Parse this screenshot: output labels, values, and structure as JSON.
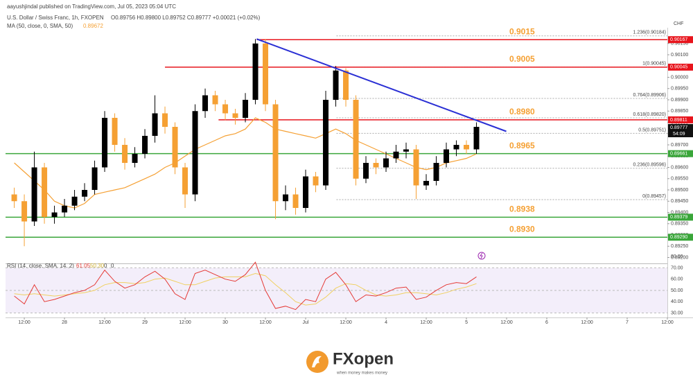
{
  "header": {
    "publisher": "aayushjindal published on TradingView.com, Jul 05, 2023 05:04 UTC",
    "symbol": "U.S. Dollar / Swiss Franc, 1h, FXOPEN",
    "ohlc": "O0.89756 H0.89800 L0.89752 C0.89777 +0.00021 (+0.02%)",
    "ma_legend": "MA (50, close, 0, SMA, 50)",
    "ma_value": "0.89672",
    "rsi_legend": "RSI (14, close, SMA, 14, 2)",
    "rsi_values": [
      "61.05",
      "50.30",
      "0",
      "0"
    ]
  },
  "footer": {
    "brand": "FXopen",
    "tagline": "when money makes money"
  },
  "chart_data": {
    "type": "candlestick",
    "currency": "CHF",
    "up_color": "#000000",
    "down_color": "#f5a033",
    "ma_color": "#f5a033",
    "xlim": [
      -5.6,
      192
    ],
    "xticks": [
      {
        "value": 0,
        "label": "12:00"
      },
      {
        "value": 12,
        "label": "28"
      },
      {
        "value": 24,
        "label": "12:00"
      },
      {
        "value": 36,
        "label": "29"
      },
      {
        "value": 48,
        "label": "12:00"
      },
      {
        "value": 60,
        "label": "30"
      },
      {
        "value": 72,
        "label": "12:00"
      },
      {
        "value": 84,
        "label": "Jul"
      },
      {
        "value": 96,
        "label": "12:00"
      },
      {
        "value": 108,
        "label": "4"
      },
      {
        "value": 120,
        "label": "12:00"
      },
      {
        "value": 132,
        "label": "5"
      },
      {
        "value": 144,
        "label": "12:00"
      },
      {
        "value": 156,
        "label": "6"
      },
      {
        "value": 168,
        "label": "12:00"
      },
      {
        "value": 180,
        "label": "7"
      },
      {
        "value": 192,
        "label": "12:00"
      }
    ],
    "ylim": [
      0.8918,
      0.9022
    ],
    "yticks": [
      {
        "value": 0.892,
        "label": "0.89200"
      },
      {
        "value": 0.8925,
        "label": "0.89250"
      },
      {
        "value": 0.893,
        "label": "0.89300"
      },
      {
        "value": 0.8935,
        "label": "0.89350"
      },
      {
        "value": 0.894,
        "label": "0.89400"
      },
      {
        "value": 0.8945,
        "label": "0.89450"
      },
      {
        "value": 0.895,
        "label": "0.89500"
      },
      {
        "value": 0.8955,
        "label": "0.89550"
      },
      {
        "value": 0.896,
        "label": "0.89600"
      },
      {
        "value": 0.8965,
        "label": "0.89650"
      },
      {
        "value": 0.897,
        "label": "0.89700"
      },
      {
        "value": 0.8975,
        "label": "0.89750"
      },
      {
        "value": 0.898,
        "label": "0.89800"
      },
      {
        "value": 0.8985,
        "label": "0.89850"
      },
      {
        "value": 0.899,
        "label": "0.89900"
      },
      {
        "value": 0.8995,
        "label": "0.89950"
      },
      {
        "value": 0.9,
        "label": "0.90000"
      },
      {
        "value": 0.9005,
        "label": "0.90050"
      },
      {
        "value": 0.901,
        "label": "0.90100"
      },
      {
        "value": 0.9015,
        "label": "0.90150"
      }
    ],
    "x": [
      -3,
      0,
      3,
      6,
      9,
      12,
      15,
      18,
      21,
      24,
      27,
      30,
      33,
      36,
      39,
      42,
      45,
      48,
      51,
      54,
      57,
      60,
      63,
      66,
      69,
      72,
      75,
      78,
      81,
      84,
      87,
      90,
      93,
      96,
      99,
      102,
      105,
      108,
      111,
      114,
      117,
      120,
      123,
      126,
      129,
      132,
      135
    ],
    "open": [
      0.8948,
      0.8945,
      0.8936,
      0.896,
      0.8938,
      0.894,
      0.8943,
      0.8947,
      0.895,
      0.896,
      0.8982,
      0.897,
      0.8962,
      0.8966,
      0.8974,
      0.8984,
      0.8978,
      0.896,
      0.8948,
      0.8985,
      0.8992,
      0.8988,
      0.8984,
      0.8982,
      0.899,
      0.9015,
      0.8988,
      0.8945,
      0.8948,
      0.8942,
      0.8956,
      0.8952,
      0.899,
      0.9003,
      0.899,
      0.8955,
      0.8962,
      0.896,
      0.8964,
      0.8967,
      0.8968,
      0.8952,
      0.8954,
      0.8962,
      0.8968,
      0.897,
      0.8968
    ],
    "high": [
      0.8951,
      0.8948,
      0.8967,
      0.8962,
      0.8943,
      0.8946,
      0.895,
      0.8953,
      0.8963,
      0.8985,
      0.8984,
      0.8973,
      0.8969,
      0.8977,
      0.8992,
      0.8987,
      0.898,
      0.8962,
      0.8988,
      0.8995,
      0.8994,
      0.899,
      0.8986,
      0.8993,
      0.9017,
      0.9017,
      0.899,
      0.8952,
      0.8951,
      0.8959,
      0.8958,
      0.8994,
      0.9005,
      0.9004,
      0.8992,
      0.8965,
      0.8964,
      0.8967,
      0.897,
      0.8971,
      0.897,
      0.8957,
      0.8965,
      0.8971,
      0.8972,
      0.8972,
      0.898
    ],
    "low": [
      0.8942,
      0.8925,
      0.8934,
      0.8935,
      0.8935,
      0.8938,
      0.8941,
      0.8945,
      0.8948,
      0.8958,
      0.8967,
      0.8959,
      0.896,
      0.8964,
      0.8971,
      0.8975,
      0.8957,
      0.8942,
      0.8945,
      0.8982,
      0.8985,
      0.8981,
      0.8979,
      0.898,
      0.8988,
      0.8985,
      0.8937,
      0.8941,
      0.8939,
      0.894,
      0.8949,
      0.895,
      0.8987,
      0.8987,
      0.8952,
      0.8953,
      0.8957,
      0.8958,
      0.8962,
      0.8964,
      0.8946,
      0.895,
      0.8952,
      0.896,
      0.8965,
      0.8966,
      0.8966
    ],
    "close": [
      0.8945,
      0.8936,
      0.896,
      0.8938,
      0.894,
      0.8943,
      0.8947,
      0.895,
      0.896,
      0.8982,
      0.897,
      0.8962,
      0.8966,
      0.8974,
      0.8984,
      0.8978,
      0.896,
      0.8948,
      0.8985,
      0.8992,
      0.8988,
      0.8984,
      0.8982,
      0.899,
      0.9015,
      0.8988,
      0.8945,
      0.8948,
      0.8942,
      0.8956,
      0.8952,
      0.899,
      0.9003,
      0.899,
      0.8955,
      0.8962,
      0.896,
      0.8964,
      0.8967,
      0.8968,
      0.8952,
      0.8954,
      0.8962,
      0.8968,
      0.897,
      0.8968,
      0.8978
    ],
    "ma": [
      0.8962,
      0.8958,
      0.8954,
      0.895,
      0.8945,
      0.8943,
      0.8942,
      0.8944,
      0.8948,
      0.8949,
      0.895,
      0.8951,
      0.8953,
      0.8955,
      0.8957,
      0.896,
      0.8962,
      0.8965,
      0.8968,
      0.897,
      0.8972,
      0.8974,
      0.8975,
      0.8977,
      0.8982,
      0.898,
      0.8977,
      0.8976,
      0.8975,
      0.8974,
      0.8973,
      0.8975,
      0.8977,
      0.8975,
      0.8972,
      0.897,
      0.8968,
      0.8966,
      0.8964,
      0.8962,
      0.896,
      0.8959,
      0.896,
      0.8962,
      0.8963,
      0.8964,
      0.8966
    ],
    "last_price": 0.89777,
    "countdown": "54:09",
    "levels": [
      {
        "label": "0.9015",
        "value": 0.90167,
        "axis_label": "0.90167",
        "color": "#e8141c",
        "x_start": 69.4
      },
      {
        "label": "0.9005",
        "value": 0.90045,
        "axis_label": "0.90045",
        "color": "#e8141c",
        "x_start": 42
      },
      {
        "label": "0.8980",
        "value": 0.89811,
        "axis_label": "0.89811",
        "color": "#e8141c",
        "x_start": 58
      },
      {
        "label": "0.8965",
        "value": 0.89661,
        "axis_label": "0.89661",
        "color": "#3aa63a",
        "x_start": -5.6
      },
      {
        "label": "0.8938",
        "value": 0.89379,
        "axis_label": "0.89379",
        "color": "#3aa63a",
        "x_start": -5.6
      },
      {
        "label": "0.8930",
        "value": 0.8929,
        "axis_label": "0.89290",
        "color": "#3aa63a",
        "x_start": -5.6
      }
    ],
    "fib": {
      "x_start": 93.2,
      "levels": [
        {
          "value": 0.90184,
          "label": "1.236(0.90184)"
        },
        {
          "value": 0.90045,
          "label": "1(0.90045)"
        },
        {
          "value": 0.89906,
          "label": "0.764(0.89906)"
        },
        {
          "value": 0.8982,
          "label": "0.618(0.89820)"
        },
        {
          "value": 0.89751,
          "label": "0.5(0.89751)"
        },
        {
          "value": 0.89596,
          "label": "0.236(0.89596)"
        },
        {
          "value": 0.89457,
          "label": "0(0.89457)"
        }
      ]
    },
    "trendline": {
      "x": [
        69.4,
        143.9
      ],
      "y": [
        0.9017,
        0.8976
      ],
      "color": "#2a2fd4"
    },
    "rsi": {
      "ylim": [
        26,
        85
      ],
      "yticks": [
        {
          "value": 30,
          "label": "30.00"
        },
        {
          "value": 40,
          "label": "40.00"
        },
        {
          "value": 50,
          "label": "50.00"
        },
        {
          "value": 60,
          "label": "60.00"
        },
        {
          "value": 70,
          "label": "70.00"
        },
        {
          "value": 80,
          "label": "80.00"
        }
      ],
      "band": [
        30,
        70
      ],
      "color": "#e53935",
      "ma_color": "#f0d060",
      "values": [
        45,
        38,
        55,
        40,
        42,
        45,
        48,
        50,
        55,
        68,
        58,
        52,
        55,
        62,
        67,
        60,
        47,
        42,
        65,
        68,
        64,
        60,
        58,
        64,
        75,
        50,
        34,
        36,
        33,
        42,
        40,
        60,
        66,
        55,
        40,
        46,
        45,
        48,
        52,
        53,
        42,
        44,
        50,
        55,
        57,
        56,
        62
      ],
      "ma": [
        47,
        46,
        47,
        46,
        45,
        46,
        47,
        48,
        50,
        55,
        57,
        57,
        56,
        57,
        60,
        61,
        58,
        55,
        55,
        58,
        61,
        62,
        62,
        62,
        65,
        63,
        55,
        48,
        40,
        37,
        38,
        44,
        52,
        56,
        55,
        50,
        46,
        45,
        46,
        48,
        48,
        47,
        46,
        48,
        51,
        53,
        56
      ]
    }
  }
}
